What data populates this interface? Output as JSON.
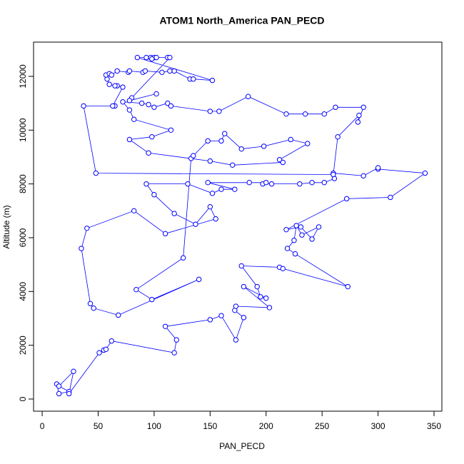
{
  "chart_data": {
    "type": "line",
    "title": "ATOM1 North_America PAN_PECD",
    "x_label": "PAN_PECD",
    "y_label": "Altitude (m)",
    "color": "#0000ff",
    "markers": true,
    "xlim": [
      -7.7,
      357
    ],
    "ylim": [
      -451,
      13273
    ],
    "xticks": [
      0,
      50,
      100,
      150,
      200,
      250,
      300,
      350
    ],
    "yticks": [
      0,
      2000,
      4000,
      6000,
      8000,
      10000,
      12000
    ],
    "x": [
      13,
      15,
      24,
      15,
      28,
      24,
      51,
      55,
      57,
      62,
      118,
      120,
      110,
      150,
      160,
      173,
      180,
      172,
      173,
      203,
      180,
      200,
      195,
      192,
      178,
      212,
      215,
      273,
      226,
      219,
      225,
      227,
      232,
      247,
      241,
      231,
      218,
      272,
      311,
      342,
      300,
      300,
      287,
      260,
      261,
      252,
      241,
      230,
      205,
      197,
      200,
      185,
      148,
      172,
      160,
      152,
      130,
      93,
      100,
      118,
      137,
      150,
      155,
      110,
      82,
      40,
      35,
      43,
      46,
      68,
      140,
      98,
      84,
      126,
      133,
      135,
      148,
      160,
      163,
      178,
      198,
      222,
      237,
      212,
      215,
      170,
      150,
      95,
      78,
      98,
      115,
      82,
      78,
      72,
      89,
      95,
      100,
      112,
      115,
      150,
      158,
      184,
      218,
      235,
      252,
      262,
      287,
      282,
      283,
      264,
      260,
      48,
      37,
      65,
      63,
      72,
      67,
      65,
      60,
      58,
      57,
      60,
      62,
      67,
      77,
      78,
      90,
      92,
      107,
      114,
      118,
      132,
      135,
      152,
      85,
      93,
      97,
      100,
      98,
      102,
      112,
      114,
      80,
      78,
      102
    ],
    "values": [
      560,
      200,
      280,
      480,
      1030,
      200,
      1720,
      1820,
      1850,
      2160,
      1720,
      2200,
      2700,
      2950,
      3100,
      2200,
      3030,
      3300,
      3450,
      3400,
      4180,
      3750,
      3800,
      4180,
      4950,
      4900,
      4850,
      4180,
      5400,
      5600,
      5900,
      6450,
      6100,
      6400,
      5950,
      6400,
      6300,
      7450,
      7500,
      8400,
      8550,
      8600,
      8300,
      8400,
      8200,
      8050,
      8050,
      8000,
      8000,
      8000,
      8050,
      8050,
      8050,
      7800,
      7800,
      7650,
      8000,
      8000,
      7600,
      6900,
      6500,
      7150,
      6700,
      6150,
      7000,
      6350,
      5600,
      3550,
      3380,
      3120,
      4450,
      3700,
      4070,
      5250,
      8950,
      9050,
      9600,
      9600,
      9870,
      9300,
      9400,
      9650,
      9500,
      8900,
      8800,
      8700,
      8850,
      9150,
      9650,
      9750,
      10000,
      10400,
      10750,
      11050,
      11000,
      10950,
      10850,
      11000,
      10900,
      10700,
      10700,
      11250,
      10600,
      10600,
      10600,
      10850,
      10850,
      10300,
      10550,
      9750,
      8350,
      8400,
      10900,
      10900,
      10900,
      11600,
      11650,
      11650,
      11700,
      11900,
      12050,
      12100,
      12050,
      12200,
      12150,
      12200,
      12150,
      12200,
      12150,
      12200,
      12200,
      11900,
      11900,
      11850,
      12700,
      12700,
      12700,
      12700,
      12650,
      12700,
      12700,
      12700,
      11200,
      11100,
      11350
    ]
  }
}
